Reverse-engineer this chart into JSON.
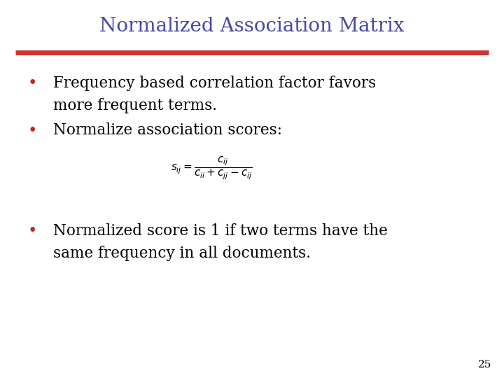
{
  "title": "Normalized Association Matrix",
  "title_color": "#4848a8",
  "title_fontsize": 20,
  "separator_color": "#cc3333",
  "separator_linewidth": 5,
  "bullet_color": "#cc2222",
  "bullet1_line1": "Frequency based correlation factor favors",
  "bullet1_line2": "more frequent terms.",
  "bullet2": "Normalize association scores:",
  "bullet3_line1": "Normalized score is 1 if two terms have the",
  "bullet3_line2": "same frequency in all documents.",
  "slide_number": "25",
  "text_color": "#000000",
  "text_fontsize": 15.5,
  "formula_fontsize": 11,
  "slide_num_fontsize": 11,
  "background_color": "#ffffff"
}
